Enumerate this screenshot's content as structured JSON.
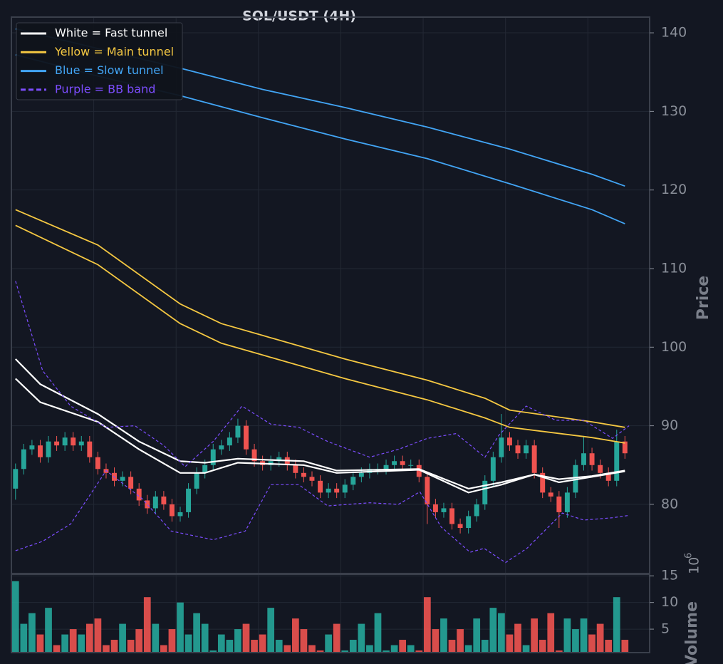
{
  "chart_data": {
    "type": "candlestick",
    "title": "SOL/USDT (4H)",
    "up_color": "#26a69a",
    "down_color": "#ef5350",
    "xlim": [
      -0.5,
      77
    ],
    "xticks": [
      9.5,
      19.5,
      29.5,
      39.5,
      49.5,
      59.5,
      69.5
    ],
    "ylim": [
      71.2,
      142
    ],
    "yticks": [
      80,
      90,
      100,
      110,
      120,
      130,
      140
    ],
    "ylabel": "Price",
    "grid": true,
    "legend": "upper left",
    "open": [
      82,
      84.5,
      87,
      87.5,
      86,
      88,
      87.5,
      88.5,
      87.5,
      88,
      86,
      84.5,
      84,
      83,
      83.5,
      82,
      80.5,
      79.5,
      81,
      80,
      78.5,
      79,
      82,
      84,
      85,
      87,
      87.5,
      88.5,
      90,
      87,
      85.5,
      85,
      85.5,
      86,
      85,
      84,
      83.5,
      83,
      81.5,
      82,
      81.5,
      82.5,
      83.5,
      84,
      84.5,
      84.5,
      85,
      85.5,
      85,
      85,
      83.5,
      80,
      79,
      79.5,
      77.5,
      77,
      78.5,
      80,
      83,
      86,
      88.5,
      87.5,
      86.5,
      87.5,
      84,
      81.5,
      81,
      79,
      81.5,
      85,
      86.5,
      85,
      84,
      83,
      88
    ],
    "high": [
      85.2,
      87.7,
      88.2,
      88.2,
      88.7,
      88.7,
      89.2,
      89.2,
      88.7,
      88.7,
      86.7,
      85.2,
      84.7,
      84.2,
      84.2,
      82.7,
      81.2,
      81.7,
      81.7,
      80.7,
      79.7,
      82.7,
      84.7,
      85.7,
      87.7,
      88.2,
      89.2,
      90.9,
      90.7,
      87.7,
      86.2,
      86.2,
      86.7,
      86.7,
      85.7,
      84.7,
      84.2,
      83.7,
      82.7,
      82.7,
      83.2,
      84.2,
      84.7,
      85.2,
      85.2,
      85.7,
      86.2,
      86.2,
      85.7,
      85.7,
      84.2,
      80.7,
      80.2,
      80.2,
      78.2,
      79.2,
      80.7,
      83.7,
      86.7,
      91.5,
      89.2,
      88.2,
      88.2,
      88.2,
      84.7,
      82.2,
      81.7,
      82.2,
      85.7,
      88.7,
      87.2,
      85.7,
      84.7,
      89.5,
      88.7
    ],
    "low": [
      80.6,
      83.8,
      86.3,
      85.3,
      85.3,
      86.8,
      86.8,
      86.8,
      86.8,
      85.3,
      83.8,
      83.3,
      82.3,
      82.3,
      81.3,
      79.8,
      78.8,
      78.8,
      79.3,
      77.8,
      77.8,
      78.3,
      81.3,
      83.3,
      84.3,
      86.3,
      86.8,
      87.8,
      86.3,
      84.8,
      84.3,
      84.3,
      84.8,
      84.3,
      83.3,
      82.8,
      82.3,
      80.8,
      80.8,
      80.8,
      80.8,
      81.8,
      82.8,
      83.3,
      83.8,
      83.8,
      84.3,
      84.3,
      84.3,
      82.8,
      77.5,
      78.3,
      78.3,
      76.8,
      76.3,
      76.3,
      77.8,
      79.3,
      82.3,
      85.3,
      86.8,
      85.8,
      85.8,
      83.3,
      80.8,
      80.3,
      77.0,
      78.3,
      80.8,
      84.3,
      84.3,
      83.3,
      82.3,
      82.3,
      85.8
    ],
    "close": [
      84.5,
      87,
      87.5,
      86,
      88,
      87.5,
      88.5,
      87.5,
      88,
      86,
      84.5,
      84,
      83,
      83.5,
      82,
      80.5,
      79.5,
      81,
      80,
      78.5,
      79,
      82,
      84,
      85,
      87,
      87.5,
      88.5,
      90,
      87,
      85.5,
      85,
      85.5,
      86,
      85,
      84,
      83.5,
      83,
      81.5,
      82,
      81.5,
      82.5,
      83.5,
      84,
      84.5,
      84.5,
      85,
      85.5,
      85,
      85,
      83.5,
      80,
      79,
      79.5,
      77.5,
      77,
      78.5,
      80,
      83,
      86,
      88.5,
      87.5,
      86.5,
      87.5,
      84,
      81.5,
      81,
      79,
      81.5,
      85,
      86.5,
      85,
      84,
      83,
      88,
      86.5
    ],
    "lines": [
      {
        "name": "White = Fast tunnel",
        "color": "#ffffff",
        "dashed": false,
        "curves": [
          {
            "x": [
              0,
              3,
              10,
              15,
              20,
              23,
              27,
              35,
              39,
              49,
              55,
              59,
              63,
              66,
              70,
              74
            ],
            "values": [
              98.5,
              95.3,
              91.5,
              88,
              85.5,
              85.3,
              85.8,
              85.5,
              84.3,
              84.5,
              82,
              82.8,
              83.8,
              83.2,
              83.6,
              84.3
            ]
          },
          {
            "x": [
              0,
              3,
              10,
              15,
              20,
              23,
              27,
              35,
              39,
              49,
              55,
              59,
              63,
              66,
              70,
              74
            ],
            "values": [
              96,
              93,
              90.5,
              87,
              84,
              84,
              85.3,
              85,
              84,
              84.4,
              81.5,
              82.5,
              83.8,
              82.8,
              83.5,
              84.2
            ]
          }
        ]
      },
      {
        "name": "Yellow = Main tunnel",
        "color": "#f5c842",
        "dashed": false,
        "curves": [
          {
            "x": [
              0,
              10,
              20,
              25,
              30,
              40,
              50,
              57,
              60,
              70,
              74
            ],
            "values": [
              117.5,
              113,
              105.5,
              103,
              101.5,
              98.5,
              95.8,
              93.5,
              92,
              90.5,
              89.8
            ]
          },
          {
            "x": [
              0,
              10,
              20,
              25,
              30,
              40,
              50,
              57,
              60,
              70,
              74
            ],
            "values": [
              115.5,
              110.5,
              103,
              100.5,
              99,
              96,
              93.3,
              91,
              89.8,
              88.5,
              87.8
            ]
          }
        ]
      },
      {
        "name": "Blue = Slow tunnel",
        "color": "#42a5f5",
        "dashed": false,
        "curves": [
          {
            "x": [
              0,
              10,
              20,
              30,
              40,
              50,
              60,
              70,
              74
            ],
            "values": [
              140.5,
              138,
              135.5,
              132.8,
              130.5,
              128,
              125.2,
              122,
              120.5
            ]
          },
          {
            "x": [
              0,
              10,
              20,
              30,
              40,
              50,
              60,
              70,
              74
            ],
            "values": [
              137.2,
              134.5,
              132,
              129.2,
              126.5,
              124,
              120.8,
              117.5,
              115.7
            ]
          }
        ]
      },
      {
        "name": "Purple = BB band",
        "color": "#7c4dff",
        "dashed": true,
        "curves": [
          {
            "x": [
              0,
              3.3,
              6.7,
              11,
              14.5,
              18,
              20.6,
              24,
              27.5,
              31,
              34.4,
              37.9,
              43,
              46.5,
              50,
              53.5,
              57,
              58.7,
              62,
              65.6,
              69,
              72.5,
              74.5
            ],
            "values": [
              108.4,
              97,
              92.5,
              89.8,
              90,
              87.5,
              84.8,
              88,
              92.5,
              90.2,
              89.8,
              88,
              86,
              87,
              88.4,
              89,
              86,
              88.8,
              92.5,
              90.7,
              90.7,
              88.4,
              90
            ]
          },
          {
            "x": [
              0,
              3.3,
              6.7,
              9.3,
              11,
              15.4,
              18.9,
              24,
              27.9,
              31,
              34.4,
              37.9,
              43,
              46.5,
              49.1,
              51.7,
              55.2,
              56.9,
              59.5,
              62.1,
              66.4,
              69,
              72.5,
              74.5
            ],
            "values": [
              74.1,
              75.3,
              77.5,
              81.6,
              84.3,
              80.7,
              76.6,
              75.5,
              76.6,
              82.5,
              82.5,
              79.8,
              80.2,
              80,
              81.6,
              77.1,
              73.9,
              74.4,
              72.6,
              74.4,
              78.9,
              78,
              78.3,
              78.6
            ]
          }
        ]
      }
    ],
    "volume": [
      14,
      6,
      8,
      4,
      9,
      2,
      4,
      5,
      4,
      6,
      7,
      2,
      3,
      6,
      3,
      5,
      11,
      6,
      2,
      5,
      10,
      4,
      8,
      6,
      1,
      4,
      3,
      5,
      6,
      3,
      4,
      9,
      3,
      2,
      7,
      5,
      2,
      1,
      4,
      6,
      1,
      3,
      6,
      2,
      8,
      1,
      2,
      3,
      2,
      1,
      11,
      5,
      7,
      3,
      5,
      2,
      7,
      3,
      9,
      8,
      4,
      6,
      2,
      7,
      3,
      8,
      1,
      7,
      5,
      7,
      4,
      6,
      3,
      11,
      3
    ],
    "volume_ylim": [
      0.6,
      15.3
    ],
    "volume_yticks": [
      5,
      10,
      15
    ],
    "volume_ylabel": "Volume",
    "volume_scale_label": {
      "base": "10",
      "exponent": "6"
    }
  }
}
